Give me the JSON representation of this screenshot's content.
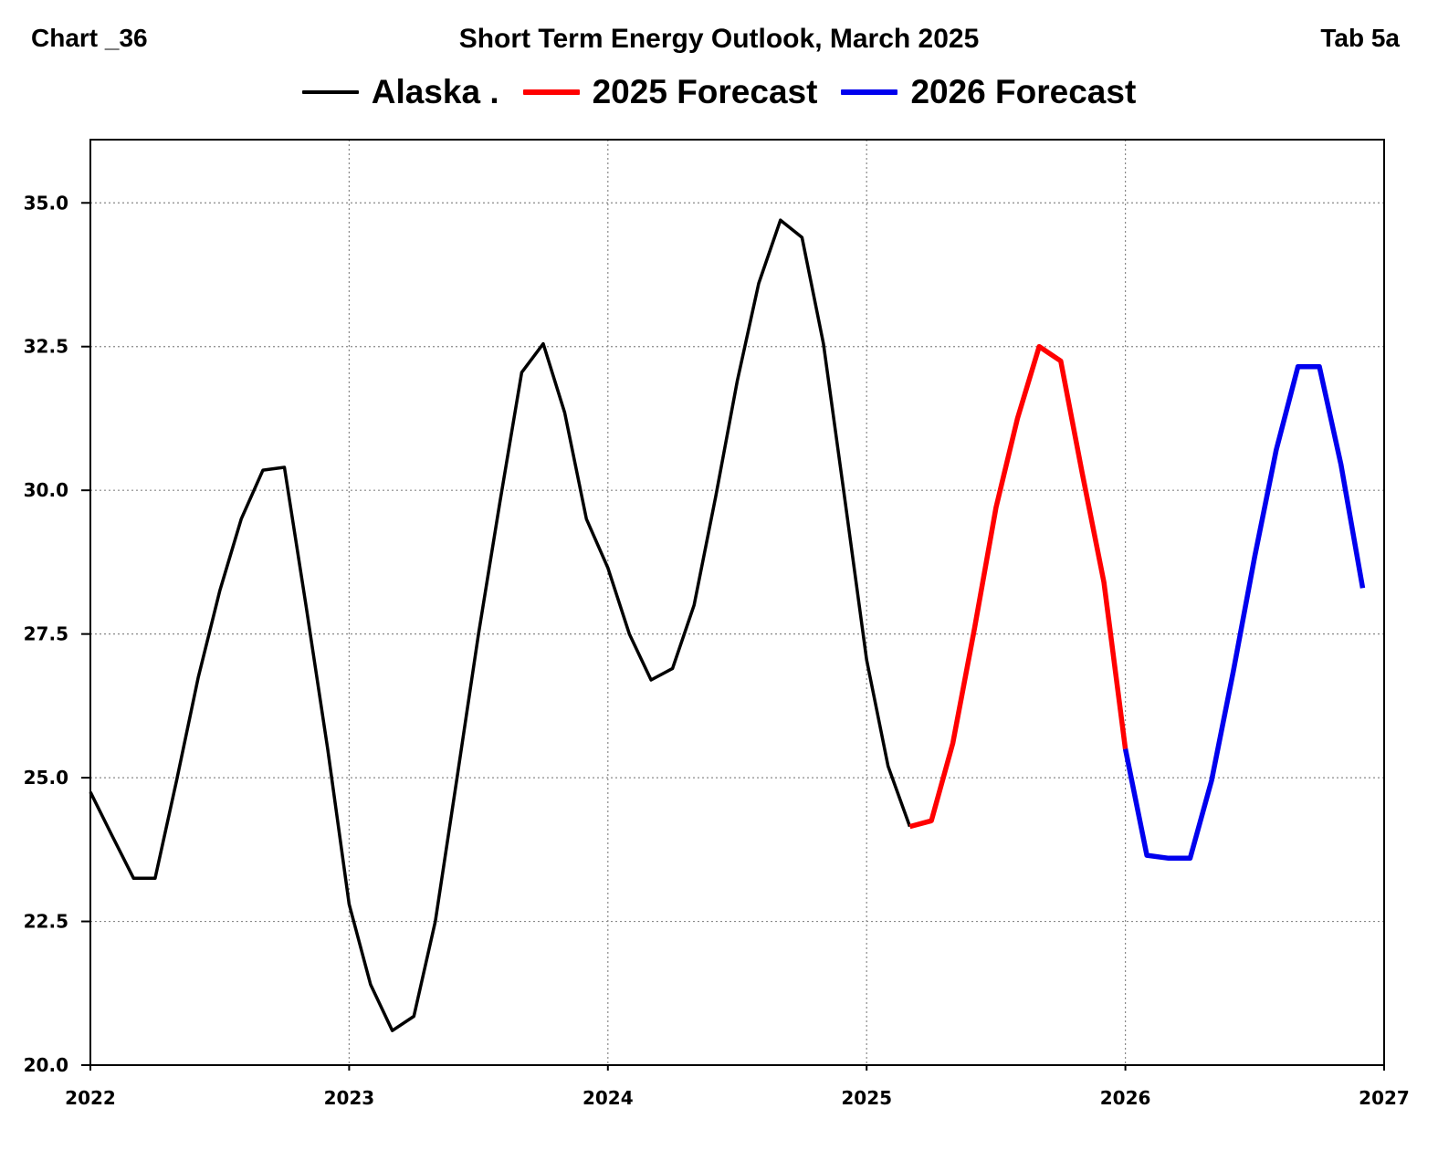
{
  "header": {
    "left": "Chart _36",
    "title": "Short Term Energy Outlook, March 2025",
    "right": "Tab 5a"
  },
  "chart_data": {
    "type": "line",
    "title": "Short Term Energy Outlook, March 2025",
    "xlabel": "",
    "ylabel": "",
    "xlim": [
      2022,
      2027
    ],
    "ylim": [
      20.0,
      36.1
    ],
    "x_ticks": [
      "2022",
      "2023",
      "2024",
      "2025",
      "2026",
      "2027"
    ],
    "y_ticks": [
      "20.0",
      "22.5",
      "25.0",
      "27.5",
      "30.0",
      "32.5",
      "35.0"
    ],
    "grid": true,
    "legend_position": "top-center",
    "series": [
      {
        "name": "Alaska .",
        "color": "#000000",
        "x": [
          2022.0,
          2022.083,
          2022.167,
          2022.25,
          2022.333,
          2022.417,
          2022.5,
          2022.583,
          2022.667,
          2022.75,
          2022.833,
          2022.917,
          2023.0,
          2023.083,
          2023.167,
          2023.25,
          2023.333,
          2023.417,
          2023.5,
          2023.583,
          2023.667,
          2023.75,
          2023.833,
          2023.917,
          2024.0,
          2024.083,
          2024.167,
          2024.25,
          2024.333,
          2024.417,
          2024.5,
          2024.583,
          2024.667,
          2024.75,
          2024.833,
          2024.917,
          2025.0,
          2025.083,
          2025.167
        ],
        "values": [
          24.75,
          24.0,
          23.25,
          23.25,
          24.95,
          26.75,
          28.25,
          29.5,
          30.35,
          30.4,
          28.0,
          25.5,
          22.8,
          21.4,
          20.6,
          20.85,
          22.5,
          25.0,
          27.5,
          29.8,
          32.05,
          32.55,
          31.35,
          29.5,
          28.65,
          27.5,
          26.7,
          26.9,
          28.0,
          29.9,
          31.9,
          33.6,
          34.7,
          34.4,
          32.55,
          29.8,
          27.05,
          25.2,
          24.15
        ]
      },
      {
        "name": "2025 Forecast",
        "color": "#ff0000",
        "x": [
          2025.167,
          2025.25,
          2025.333,
          2025.417,
          2025.5,
          2025.583,
          2025.667,
          2025.75,
          2025.833,
          2025.917,
          2026.0
        ],
        "values": [
          24.15,
          24.25,
          25.6,
          27.6,
          29.7,
          31.25,
          32.5,
          32.25,
          30.3,
          28.4,
          25.5
        ]
      },
      {
        "name": "2026 Forecast",
        "color": "#0000ee",
        "x": [
          2026.0,
          2026.083,
          2026.167,
          2026.25,
          2026.333,
          2026.417,
          2026.5,
          2026.583,
          2026.667,
          2026.75,
          2026.833,
          2026.917
        ],
        "values": [
          25.5,
          23.65,
          23.6,
          23.6,
          24.95,
          26.85,
          28.85,
          30.7,
          32.15,
          32.15,
          30.45,
          28.3
        ]
      }
    ]
  }
}
